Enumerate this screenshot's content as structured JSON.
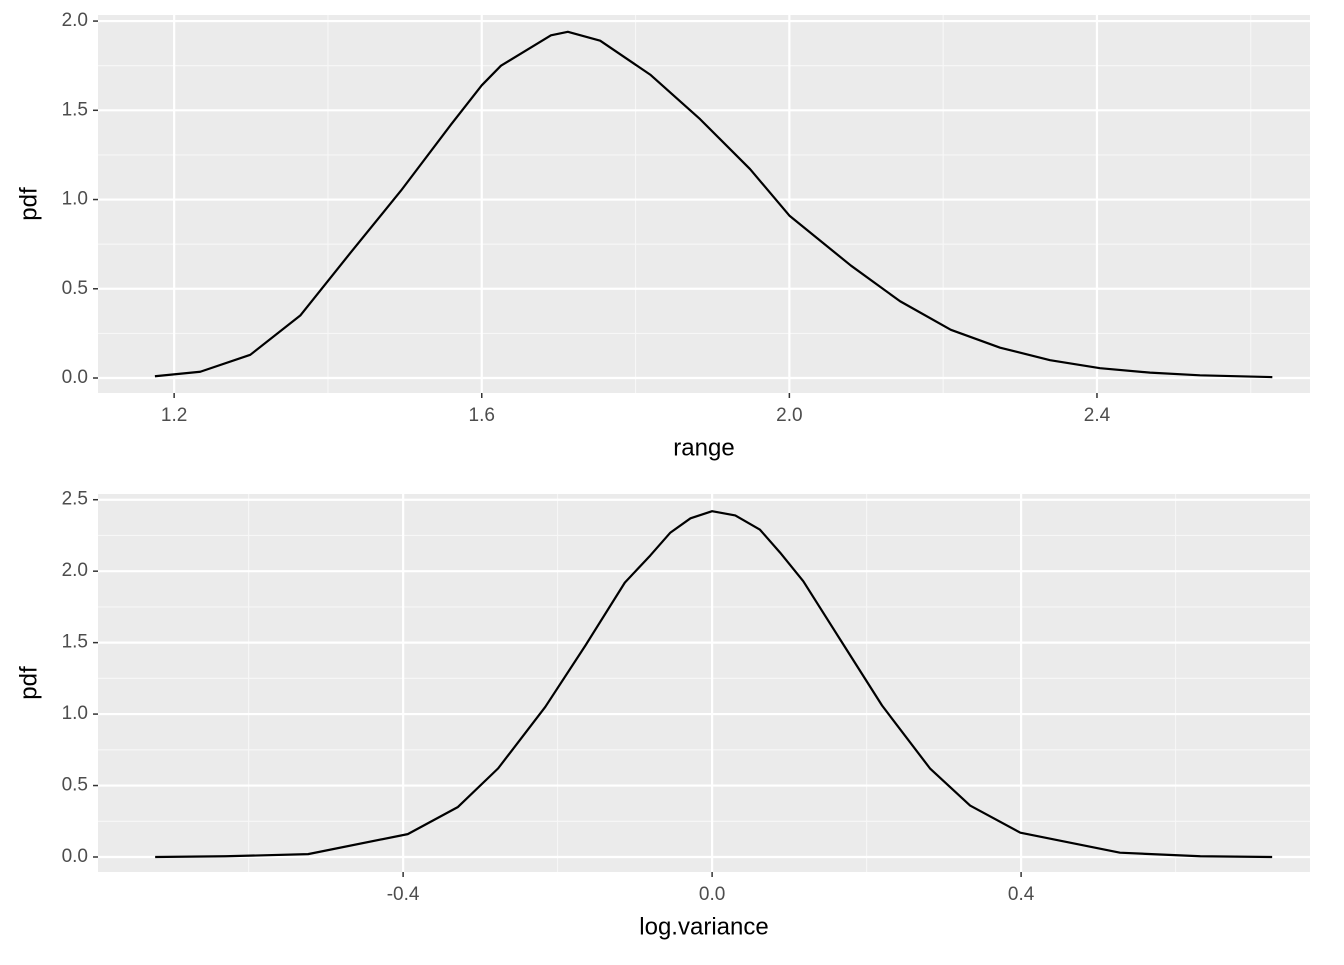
{
  "chart_data": [
    {
      "type": "line",
      "xlabel": "range",
      "ylabel": "pdf",
      "x": [
        1.175,
        1.234,
        1.299,
        1.364,
        1.429,
        1.495,
        1.56,
        1.6,
        1.625,
        1.69,
        1.712,
        1.754,
        1.819,
        1.884,
        1.949,
        2.0,
        2.08,
        2.144,
        2.21,
        2.274,
        2.339,
        2.404,
        2.469,
        2.534,
        2.628
      ],
      "series": [
        {
          "name": "pdf",
          "color": "#000000",
          "values": [
            0.01,
            0.035,
            0.13,
            0.35,
            0.7,
            1.05,
            1.42,
            1.64,
            1.75,
            1.92,
            1.94,
            1.89,
            1.7,
            1.45,
            1.17,
            0.91,
            0.63,
            0.43,
            0.27,
            0.17,
            0.1,
            0.055,
            0.03,
            0.015,
            0.005
          ]
        }
      ],
      "xlim": [
        1.101,
        2.677
      ],
      "ylim": [
        -0.084,
        2.034
      ],
      "xticks": [
        1.2,
        1.6,
        {
          "value": 2.0,
          "label": "2.0"
        },
        2.4
      ],
      "yticks": [
        {
          "value": 0,
          "label": "0.0"
        },
        0.5,
        {
          "value": 1,
          "label": "1.0"
        },
        1.5,
        {
          "value": 2,
          "label": "2.0"
        }
      ],
      "grid": true
    },
    {
      "type": "line",
      "xlabel": "log.variance",
      "ylabel": "pdf",
      "x": [
        -0.721,
        -0.63,
        -0.523,
        -0.394,
        -0.329,
        -0.277,
        -0.216,
        -0.164,
        -0.113,
        -0.08,
        -0.054,
        -0.028,
        0.0,
        0.03,
        0.062,
        0.088,
        0.118,
        0.166,
        0.22,
        0.282,
        0.334,
        0.399,
        0.528,
        0.632,
        0.725
      ],
      "series": [
        {
          "name": "pdf",
          "color": "#000000",
          "values": [
            0,
            0.005,
            0.02,
            0.16,
            0.35,
            0.62,
            1.05,
            1.48,
            1.92,
            2.11,
            2.27,
            2.37,
            2.42,
            2.39,
            2.29,
            2.13,
            1.93,
            1.52,
            1.06,
            0.62,
            0.36,
            0.17,
            0.03,
            0.005,
            0
          ]
        }
      ],
      "xlim": [
        -0.795,
        0.774
      ],
      "ylim": [
        -0.105,
        2.54
      ],
      "xticks": [
        -0.4,
        {
          "value": 0,
          "label": "0.0"
        },
        0.4
      ],
      "yticks": [
        {
          "value": 0,
          "label": "0.0"
        },
        0.5,
        {
          "value": 1,
          "label": "1.0"
        },
        1.5,
        {
          "value": 2,
          "label": "2.0"
        },
        2.5
      ],
      "grid": true
    }
  ]
}
